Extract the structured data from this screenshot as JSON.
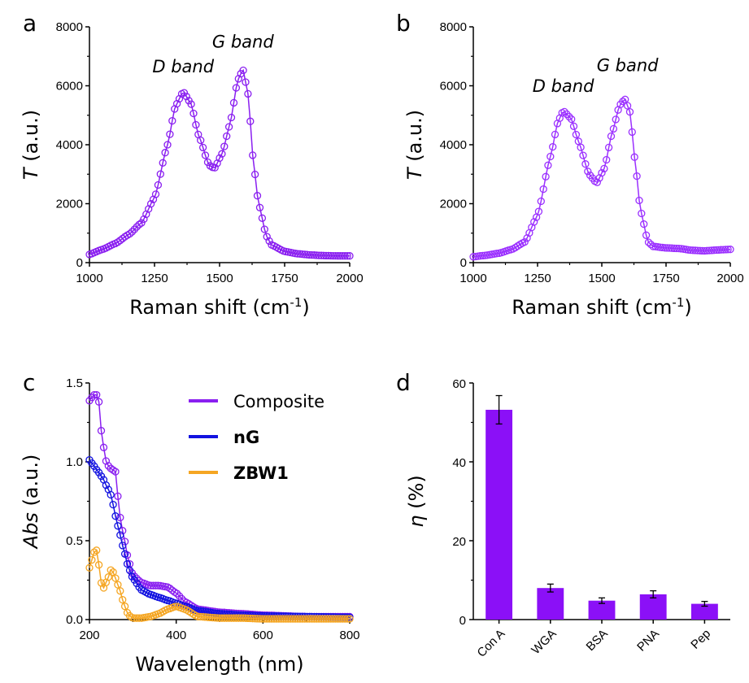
{
  "chart_data": [
    {
      "panel": "a",
      "type": "line",
      "xlabel": "Raman shift (cm",
      "xlabel_sup": "-1",
      "xlabel_close": ")",
      "ylabel_sym": "T",
      "ylabel_unit": " (a.u.)",
      "xlim": [
        1000,
        2000
      ],
      "ylim": [
        0,
        8000
      ],
      "xticks": [
        "1000",
        "1250",
        "1500",
        "1750",
        "2000"
      ],
      "yticks": [
        "0",
        "2000",
        "4000",
        "6000",
        "8000"
      ],
      "color": "#8a1ff0",
      "marker": "open-circle",
      "annotations": [
        {
          "text": "D band",
          "x": 1360,
          "y": 6450
        },
        {
          "text": "G band",
          "x": 1590,
          "y": 7300
        }
      ],
      "series": [
        {
          "x": [
            1000,
            1050,
            1100,
            1150,
            1200,
            1250,
            1300,
            1330,
            1360,
            1390,
            1420,
            1460,
            1480,
            1510,
            1540,
            1570,
            1590,
            1610,
            1630,
            1650,
            1680,
            1700,
            1750,
            1800,
            1850,
            1900,
            1950,
            2000
          ],
          "y": [
            280,
            450,
            650,
            950,
            1350,
            2200,
            4000,
            5300,
            5800,
            5400,
            4300,
            3300,
            3200,
            3700,
            4700,
            6200,
            6550,
            5700,
            3400,
            2000,
            900,
            600,
            380,
            300,
            260,
            240,
            230,
            230
          ]
        }
      ]
    },
    {
      "panel": "b",
      "type": "line",
      "xlabel": "Raman shift (cm",
      "xlabel_sup": "-1",
      "xlabel_close": ")",
      "ylabel_sym": "T",
      "ylabel_unit": " (a.u.)",
      "xlim": [
        1000,
        2000
      ],
      "ylim": [
        0,
        8000
      ],
      "xticks": [
        "1000",
        "1250",
        "1500",
        "1750",
        "2000"
      ],
      "yticks": [
        "0",
        "2000",
        "4000",
        "6000",
        "8000"
      ],
      "color": "#9b30ff",
      "marker": "open-circle",
      "annotations": [
        {
          "text": "D band",
          "x": 1350,
          "y": 5800
        },
        {
          "text": "G band",
          "x": 1600,
          "y": 6500
        }
      ],
      "series": [
        {
          "x": [
            1000,
            1050,
            1100,
            1150,
            1200,
            1250,
            1300,
            1330,
            1350,
            1380,
            1410,
            1450,
            1480,
            1510,
            1540,
            1570,
            1590,
            1610,
            1630,
            1650,
            1680,
            1700,
            1750,
            1800,
            1850,
            1900,
            1950,
            2000
          ],
          "y": [
            200,
            250,
            320,
            450,
            700,
            1600,
            3600,
            4800,
            5150,
            4900,
            4100,
            3000,
            2700,
            3200,
            4400,
            5350,
            5550,
            5100,
            3400,
            1800,
            700,
            550,
            500,
            480,
            420,
            400,
            430,
            450
          ]
        }
      ]
    },
    {
      "panel": "c",
      "type": "line",
      "xlabel": "Wavelength (nm)",
      "ylabel_sym": "Abs",
      "ylabel_unit": " (a.u.)",
      "xlim": [
        200,
        800
      ],
      "ylim": [
        0,
        1.6
      ],
      "xticks": [
        "200",
        "400",
        "600",
        "800"
      ],
      "yticks": [
        "0.0",
        "0.5",
        "1.0",
        "1.5"
      ],
      "legend_position": "top-right",
      "series": [
        {
          "name": "Composite",
          "color": "#8a1ff0",
          "x": [
            200,
            210,
            220,
            230,
            240,
            250,
            260,
            270,
            280,
            290,
            300,
            320,
            340,
            360,
            380,
            400,
            420,
            450,
            500,
            550,
            600,
            700,
            800
          ],
          "y": [
            1.48,
            1.52,
            1.52,
            1.2,
            1.05,
            1.02,
            1.0,
            0.7,
            0.55,
            0.4,
            0.3,
            0.25,
            0.23,
            0.23,
            0.22,
            0.18,
            0.12,
            0.07,
            0.05,
            0.04,
            0.03,
            0.02,
            0.02
          ]
        },
        {
          "name": "nG",
          "color": "#1313e0",
          "x": [
            200,
            210,
            220,
            230,
            240,
            250,
            260,
            270,
            280,
            290,
            300,
            320,
            340,
            360,
            380,
            400,
            420,
            450,
            500,
            550,
            600,
            700,
            800
          ],
          "y": [
            1.08,
            1.04,
            1.0,
            0.96,
            0.9,
            0.84,
            0.7,
            0.58,
            0.46,
            0.35,
            0.28,
            0.2,
            0.17,
            0.15,
            0.13,
            0.11,
            0.09,
            0.06,
            0.04,
            0.03,
            0.025,
            0.02,
            0.015
          ]
        },
        {
          "name": "ZBW1",
          "color": "#f5a623",
          "x": [
            200,
            205,
            210,
            215,
            220,
            230,
            240,
            250,
            255,
            260,
            270,
            280,
            290,
            300,
            320,
            340,
            360,
            380,
            400,
            420,
            450,
            500,
            550,
            600,
            700,
            800
          ],
          "y": [
            0.35,
            0.4,
            0.45,
            0.49,
            0.4,
            0.2,
            0.26,
            0.34,
            0.32,
            0.28,
            0.2,
            0.1,
            0.03,
            0.01,
            0.01,
            0.02,
            0.04,
            0.07,
            0.09,
            0.07,
            0.02,
            0.01,
            0.01,
            0.005,
            0.005,
            0.005
          ]
        }
      ]
    },
    {
      "panel": "d",
      "type": "bar",
      "ylabel_sym": "η",
      "ylabel_unit": " (%)",
      "ylim": [
        0,
        60
      ],
      "yticks": [
        "0",
        "20",
        "40",
        "60"
      ],
      "color": "#8b10f7",
      "categories": [
        "Con A",
        "WGA",
        "BSA",
        "PNA",
        "Pep"
      ],
      "values": [
        53.2,
        8.0,
        4.8,
        6.4,
        4.0
      ],
      "errors": [
        3.6,
        1.0,
        0.7,
        0.9,
        0.6
      ]
    }
  ]
}
